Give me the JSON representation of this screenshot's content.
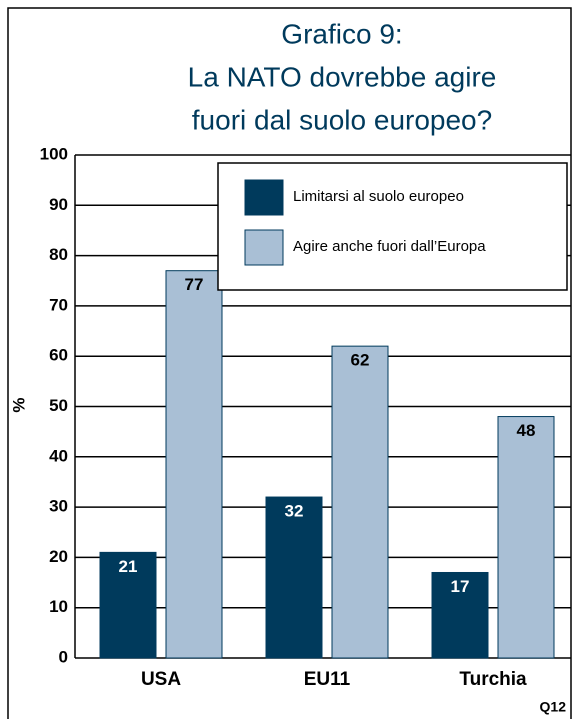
{
  "chart_data": {
    "type": "bar",
    "title_lines": [
      "Grafico 9:",
      "La NATO dovrebbe agire",
      "fuori dal suolo europeo?"
    ],
    "y_label": "%",
    "note": "Q12",
    "categories": [
      "USA",
      "EU11",
      "Turchia"
    ],
    "series": [
      {
        "name": "Limitarsi al suolo europeo",
        "color": "#003a5c",
        "values": [
          21,
          32,
          17
        ]
      },
      {
        "name": "Agire anche fuori dall’Europa",
        "color": "#a9bfd5",
        "values": [
          77,
          62,
          48
        ]
      }
    ],
    "ylim": [
      0,
      100
    ],
    "yticks": [
      0,
      10,
      20,
      30,
      40,
      50,
      60,
      70,
      80,
      90,
      100
    ],
    "grid": true,
    "legend": "top-right"
  }
}
